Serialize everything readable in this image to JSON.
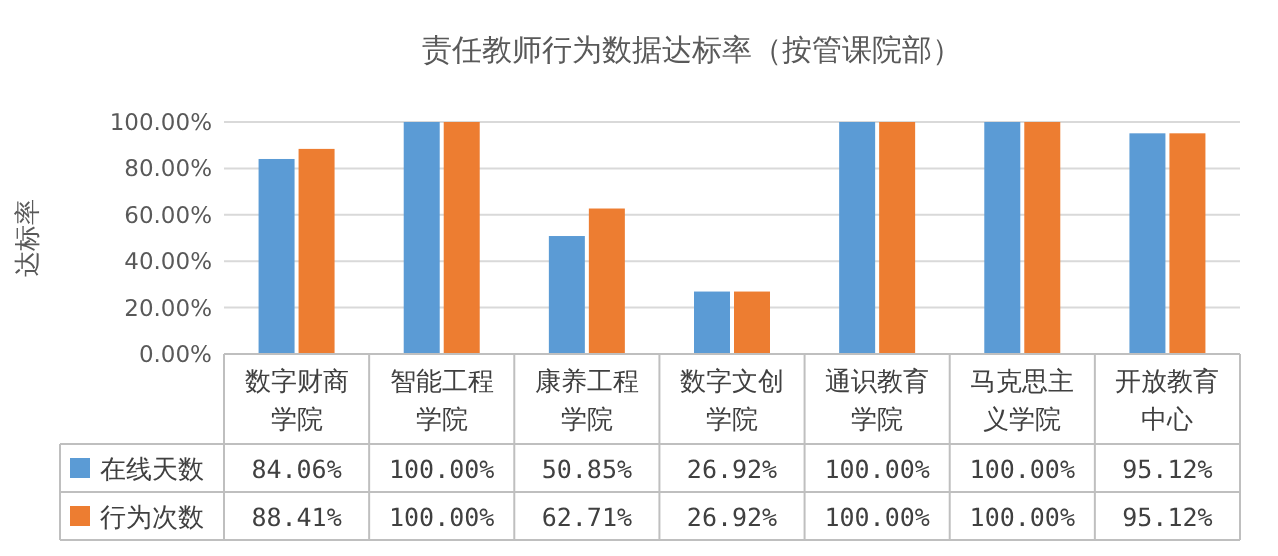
{
  "chart_data": {
    "type": "bar",
    "title": "责任教师行为数据达标率（按管课院部）",
    "ylabel": "达标率",
    "categories": [
      "数字财商学院",
      "智能工程学院",
      "康养工程学院",
      "数字文创学院",
      "通识教育学院",
      "马克思主义学院",
      "开放教育中心"
    ],
    "series": [
      {
        "name": "在线天数",
        "color": "#5b9bd5",
        "values": [
          84.06,
          100,
          50.85,
          26.92,
          100,
          100,
          95.12
        ],
        "value_labels": [
          "84.06%",
          "100.00%",
          "50.85%",
          "26.92%",
          "100.00%",
          "100.00%",
          "95.12%"
        ]
      },
      {
        "name": "行为次数",
        "color": "#ed7d31",
        "values": [
          88.41,
          100,
          62.71,
          26.92,
          100,
          100,
          95.12
        ],
        "value_labels": [
          "88.41%",
          "100.00%",
          "62.71%",
          "26.92%",
          "100.00%",
          "100.00%",
          "95.12%"
        ]
      }
    ],
    "ylim": [
      0,
      100
    ],
    "yticks": [
      {
        "value": 0,
        "label": "0.00%"
      },
      {
        "value": 20,
        "label": "20.00%"
      },
      {
        "value": 40,
        "label": "40.00%"
      },
      {
        "value": 60,
        "label": "60.00%"
      },
      {
        "value": 80,
        "label": "80.00%"
      },
      {
        "value": 100,
        "label": "100.00%"
      }
    ],
    "grid": "y",
    "legend": "bottom"
  }
}
